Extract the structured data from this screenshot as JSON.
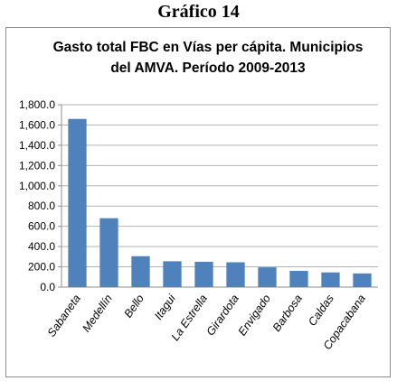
{
  "page": {
    "heading": "Gráfico 14"
  },
  "chart_data": {
    "type": "bar",
    "title": [
      "Gasto total FBC en Vías per cápita. Municipios",
      "del AMVA. Período 2009-2013"
    ],
    "categories": [
      "Sabaneta",
      "Medellín",
      "Bello",
      "Itagui",
      "La Estrella",
      "Girardota",
      "Envigado",
      "Barbosa",
      "Caldas",
      "Copacabana"
    ],
    "values": [
      1660,
      680,
      305,
      255,
      250,
      245,
      195,
      160,
      145,
      135
    ],
    "ylim": [
      0,
      1800
    ],
    "yticks": [
      "0.0",
      "200.0",
      "400.0",
      "600.0",
      "800.0",
      "1,000.0",
      "1,200.0",
      "1,400.0",
      "1,600.0",
      "1,800.0"
    ],
    "xlabel": "",
    "ylabel": "",
    "grid": true,
    "colors": {
      "bar": "#4f81bd",
      "grid": "#b3b3b3"
    }
  }
}
